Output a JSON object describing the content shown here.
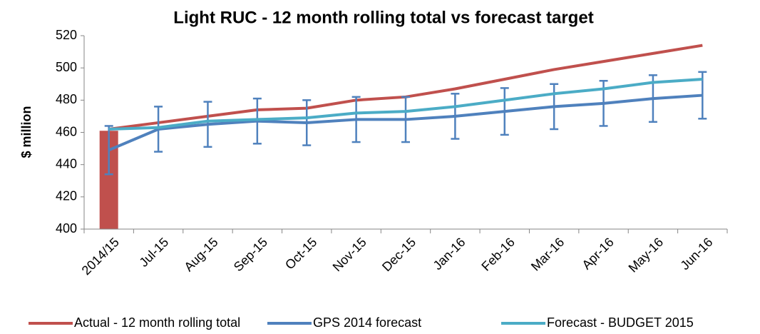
{
  "chart_data": {
    "type": "line",
    "title": "Light RUC - 12 month rolling total vs forecast target",
    "y_label": "$ million",
    "categories": [
      "2014/15",
      "Jul-15",
      "Aug-15",
      "Sep-15",
      "Oct-15",
      "Nov-15",
      "Dec-15",
      "Jan-16",
      "Feb-16",
      "Mar-16",
      "Apr-16",
      "May-16",
      "Jun-16"
    ],
    "series": [
      {
        "name": "Actual - 12 month rolling total",
        "color": "#c0504d",
        "values": [
          462,
          466,
          470,
          474,
          475,
          480,
          482,
          487,
          493,
          499,
          504,
          509,
          514
        ]
      },
      {
        "name": "GPS 2014 forecast",
        "color": "#4f81bd",
        "values": [
          449,
          462,
          465,
          467,
          466,
          468,
          468,
          470,
          473,
          476,
          478,
          481,
          483
        ],
        "errors": [
          15,
          14,
          14,
          14,
          14,
          14,
          14,
          14,
          14.5,
          14,
          14,
          14.5,
          14.5
        ]
      },
      {
        "name": "Forecast - BUDGET 2015",
        "color": "#4bacc6",
        "values": [
          462,
          463,
          467,
          468,
          469,
          472,
          473,
          476,
          480,
          484,
          487,
          491,
          493
        ]
      },
      {
        "type": "bar",
        "color": "#c0504d",
        "values": [
          461,
          null,
          null,
          null,
          null,
          null,
          null,
          null,
          null,
          null,
          null,
          null,
          null
        ]
      }
    ],
    "ylim": [
      400,
      520
    ],
    "yticks": [
      400,
      420,
      440,
      460,
      480,
      500,
      520
    ],
    "grid": false
  }
}
